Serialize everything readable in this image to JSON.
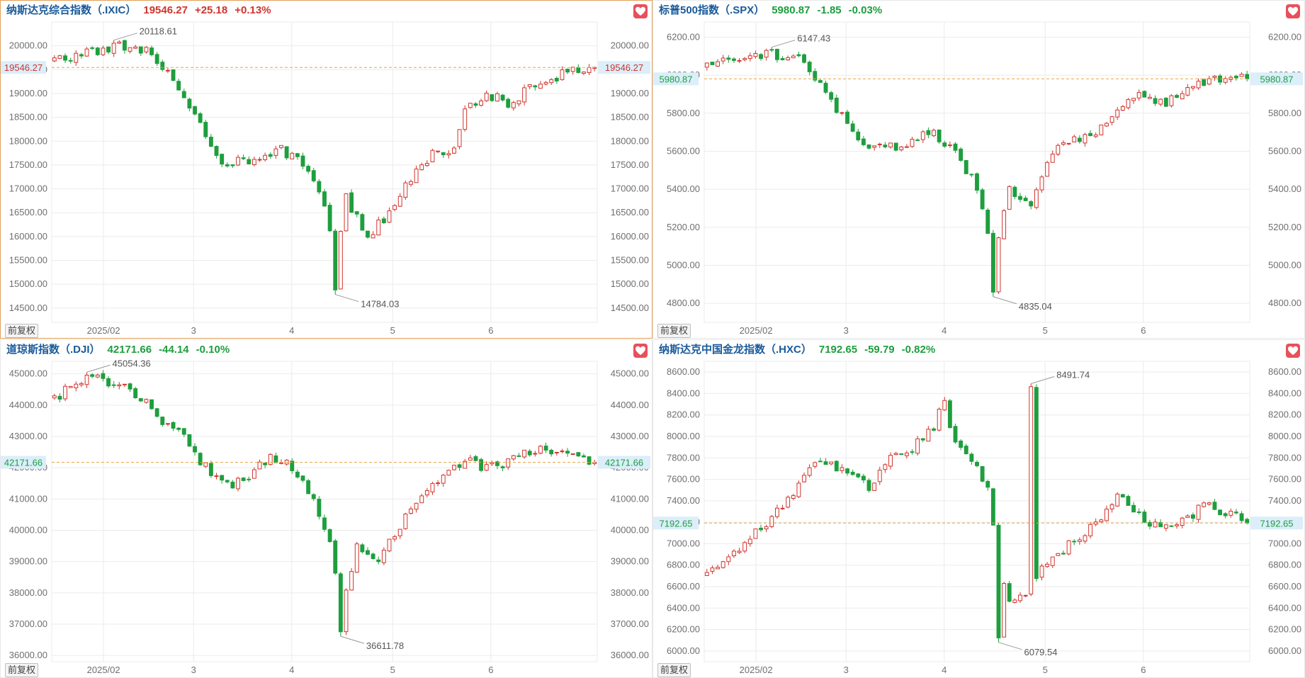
{
  "colors": {
    "up": "#d0342c",
    "down": "#1e9e3e",
    "grid": "#ebebeb",
    "price_line": "#e8a33d",
    "axis_text": "#6f6f6f",
    "title": "#1a5a9a",
    "active_border": "#e2a05a",
    "favorite": "#e8505b"
  },
  "icons": {
    "favorite": "heart-icon"
  },
  "panels": [
    {
      "name": "纳斯达克综合指数",
      "code": "（.IXIC）",
      "price": "19546.27",
      "change": "+25.18",
      "change_pct": "+0.13%",
      "direction": "up",
      "active": true,
      "adjust_label": "前复权"
    },
    {
      "name": "标普500指数",
      "code": "（.SPX）",
      "price": "5980.87",
      "change": "-1.85",
      "change_pct": "-0.03%",
      "direction": "down",
      "active": false,
      "adjust_label": "前复权"
    },
    {
      "name": "道琼斯指数",
      "code": "（.DJI）",
      "price": "42171.66",
      "change": "-44.14",
      "change_pct": "-0.10%",
      "direction": "down",
      "active": false,
      "adjust_label": "前复权"
    },
    {
      "name": "纳斯达克中国金龙指数",
      "code": "（.HXC）",
      "price": "7192.65",
      "change": "-59.79",
      "change_pct": "-0.82%",
      "direction": "down",
      "active": false,
      "adjust_label": "前复权"
    }
  ],
  "chart_data": [
    {
      "type": "candlestick",
      "series": "纳斯达克综合指数（.IXIC）",
      "ylim": [
        14200,
        20500
      ],
      "y_ticks": [
        20000,
        19500,
        19000,
        18500,
        18000,
        17500,
        17000,
        16500,
        16000,
        15500,
        15000,
        14500
      ],
      "y_tick_labels": [
        "20000.00",
        "19500.00",
        "19000.00",
        "18500.00",
        "18000.00",
        "17500.00",
        "17000.00",
        "16500.00",
        "16000.00",
        "15500.00",
        "15000.00",
        "14500.00"
      ],
      "x_tick_labels": [
        "2025/02",
        "3",
        "4",
        "5",
        "6"
      ],
      "current_price": 19546.27,
      "current_price_label": "19546.27",
      "annotations": [
        {
          "label": "20118.61",
          "value": 20118.61,
          "kind": "high"
        },
        {
          "label": "14784.03",
          "value": 14784.03,
          "kind": "low"
        }
      ],
      "grid": true
    },
    {
      "type": "candlestick",
      "series": "标普500指数（.SPX）",
      "ylim": [
        4700,
        6280
      ],
      "y_ticks": [
        6200,
        6000,
        5800,
        5600,
        5400,
        5200,
        5000,
        4800
      ],
      "y_tick_labels": [
        "6200.00",
        "6000.00",
        "5800.00",
        "5600.00",
        "5400.00",
        "5200.00",
        "5000.00",
        "4800.00"
      ],
      "x_tick_labels": [
        "2025/02",
        "3",
        "4",
        "5",
        "6"
      ],
      "current_price": 5980.87,
      "current_price_label": "5980.87",
      "annotations": [
        {
          "label": "6147.43",
          "value": 6147.43,
          "kind": "high"
        },
        {
          "label": "4835.04",
          "value": 4835.04,
          "kind": "low"
        }
      ],
      "grid": true
    },
    {
      "type": "candlestick",
      "series": "道琼斯指数（.DJI）",
      "ylim": [
        35800,
        45400
      ],
      "y_ticks": [
        45000,
        44000,
        43000,
        42000,
        41000,
        40000,
        39000,
        38000,
        37000,
        36000
      ],
      "y_tick_labels": [
        "45000.00",
        "44000.00",
        "43000.00",
        "42000.00",
        "41000.00",
        "40000.00",
        "39000.00",
        "38000.00",
        "37000.00",
        "36000.00"
      ],
      "x_tick_labels": [
        "2025/02",
        "3",
        "4",
        "5",
        "6"
      ],
      "current_price": 42171.66,
      "current_price_label": "42171.66",
      "annotations": [
        {
          "label": "45054.36",
          "value": 45054.36,
          "kind": "high"
        },
        {
          "label": "36611.78",
          "value": 36611.78,
          "kind": "low"
        }
      ],
      "grid": true
    },
    {
      "type": "candlestick",
      "series": "纳斯达克中国金龙指数（.HXC）",
      "ylim": [
        5900,
        8700
      ],
      "y_ticks": [
        8600,
        8400,
        8200,
        8000,
        7800,
        7600,
        7400,
        7200,
        7000,
        6800,
        6600,
        6400,
        6200,
        6000
      ],
      "y_tick_labels": [
        "8600.00",
        "8400.00",
        "8200.00",
        "8000.00",
        "7800.00",
        "7600.00",
        "7400.00",
        "7200.00",
        "7000.00",
        "6800.00",
        "6600.00",
        "6400.00",
        "6200.00",
        "6000.00"
      ],
      "x_tick_labels": [
        "2025/02",
        "3",
        "4",
        "5",
        "6"
      ],
      "current_price": 7192.65,
      "current_price_label": "7192.65",
      "annotations": [
        {
          "label": "8491.74",
          "value": 8491.74,
          "kind": "high"
        },
        {
          "label": "6079.54",
          "value": 6079.54,
          "kind": "low"
        }
      ],
      "grid": true
    }
  ]
}
